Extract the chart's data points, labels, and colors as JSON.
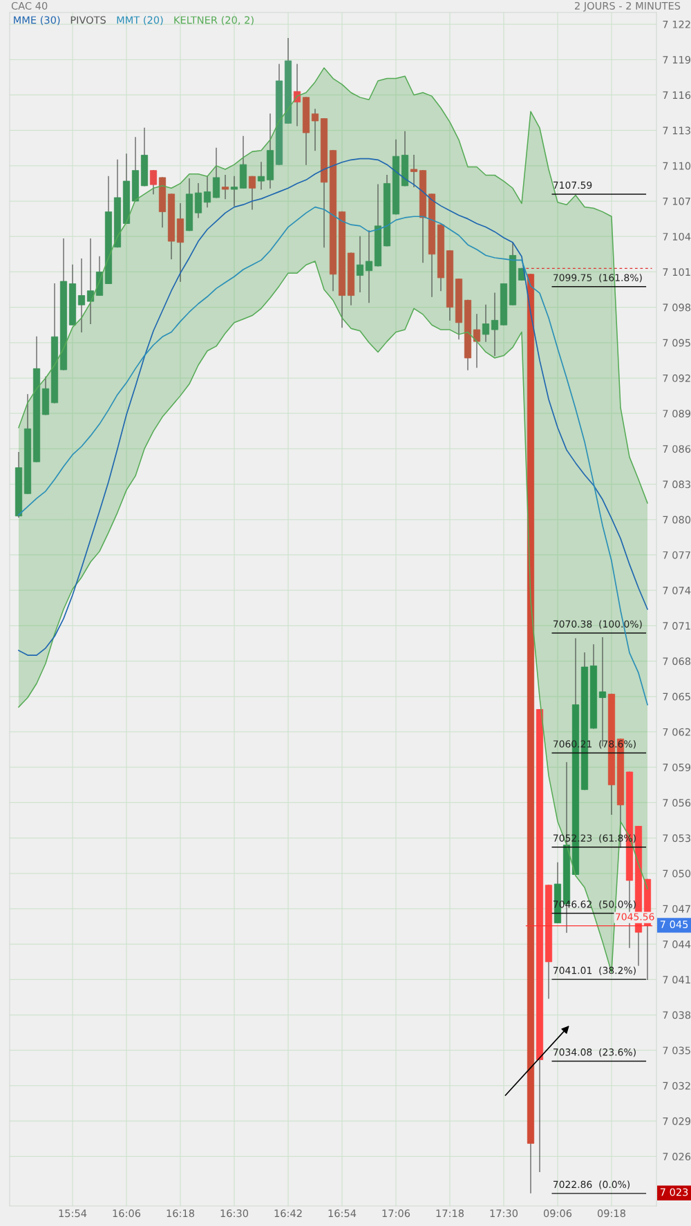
{
  "chart_data": {
    "type": "candlestick",
    "title": "CAC 40",
    "subtitle": "2 JOURS - 2 MINUTES",
    "categories": [
      null,
      null,
      null,
      null,
      null,
      null,
      "15:54",
      null,
      null,
      null,
      null,
      null,
      "16:06",
      null,
      null,
      null,
      null,
      null,
      "16:18",
      null,
      null,
      null,
      null,
      null,
      "16:30",
      null,
      null,
      null,
      null,
      null,
      "16:42",
      null,
      null,
      null,
      null,
      null,
      "16:54",
      null,
      null,
      null,
      null,
      null,
      "17:06",
      null,
      null,
      null,
      null,
      null,
      "17:18",
      null,
      null,
      null,
      null,
      null,
      "17:30",
      null,
      null,
      null,
      null,
      null,
      "09:06",
      null,
      null,
      null,
      null,
      null,
      "09:18",
      null,
      null,
      null,
      null
    ],
    "ohlc": [
      [
        7080.3,
        7085.7,
        7080.2,
        7084.4
      ],
      [
        7082.2,
        7090.6,
        7082.2,
        7087.7
      ],
      [
        7084.9,
        7095.5,
        7084.9,
        7092.8
      ],
      [
        7088.9,
        7092.1,
        7088.9,
        7091.1
      ],
      [
        7089.9,
        7100.0,
        7089.9,
        7095.5
      ],
      [
        7092.7,
        7103.8,
        7092.7,
        7100.2
      ],
      [
        7096.5,
        7101.6,
        7096.5,
        7100.0
      ],
      [
        7098.2,
        7102.1,
        7095.9,
        7099.0
      ],
      [
        7098.5,
        7103.8,
        7096.6,
        7099.4
      ],
      [
        7099.0,
        7102.3,
        7099.0,
        7101.0
      ],
      [
        7100.0,
        7109.1,
        7100.0,
        7106.1
      ],
      [
        7103.1,
        7110.5,
        7103.1,
        7107.3
      ],
      [
        7105.1,
        7111.0,
        7105.1,
        7108.7
      ],
      [
        7107.0,
        7112.4,
        7107.0,
        7109.6
      ],
      [
        7108.3,
        7113.2,
        7108.3,
        7110.9
      ],
      [
        7109.6,
        7109.6,
        7107.6,
        7108.4
      ],
      [
        7109.0,
        7109.0,
        7104.8,
        7106.1
      ],
      [
        7107.6,
        7107.6,
        7102.1,
        7103.6
      ],
      [
        7105.5,
        7106.8,
        7100.2,
        7103.5
      ],
      [
        7104.5,
        7108.9,
        7104.5,
        7107.6
      ],
      [
        7106.0,
        7108.5,
        7105.6,
        7107.7
      ],
      [
        7106.9,
        7109.1,
        7106.5,
        7107.8
      ],
      [
        7107.3,
        7111.5,
        7107.3,
        7109.0
      ],
      [
        7108.2,
        7109.2,
        7107.2,
        7108.0
      ],
      [
        7108.0,
        7109.1,
        7106.6,
        7108.2
      ],
      [
        7108.1,
        7112.5,
        7108.1,
        7110.1
      ],
      [
        7109.1,
        7109.1,
        7106.3,
        7108.1
      ],
      [
        7108.7,
        7110.3,
        7108.0,
        7109.1
      ],
      [
        7108.8,
        7114.4,
        7108.1,
        7111.3
      ],
      [
        7110.1,
        7118.6,
        7110.1,
        7117.2
      ],
      [
        7113.6,
        7120.8,
        7113.6,
        7118.9
      ],
      [
        7116.3,
        7118.6,
        7113.4,
        7115.4
      ],
      [
        7115.8,
        7115.8,
        7110.1,
        7112.8
      ],
      [
        7114.4,
        7114.8,
        7111.3,
        7113.8
      ],
      [
        7114.0,
        7114.0,
        7103.1,
        7108.6
      ],
      [
        7111.3,
        7111.3,
        7099.4,
        7100.8
      ],
      [
        7106.1,
        7106.1,
        7096.3,
        7099.0
      ],
      [
        7102.6,
        7102.6,
        7098.2,
        7099.0
      ],
      [
        7100.7,
        7104.0,
        7099.3,
        7101.6
      ],
      [
        7101.1,
        7104.5,
        7098.4,
        7101.9
      ],
      [
        7101.5,
        7108.4,
        7101.5,
        7104.9
      ],
      [
        7103.2,
        7109.2,
        7103.2,
        7108.5
      ],
      [
        7105.9,
        7112.2,
        7105.9,
        7110.8
      ],
      [
        7108.3,
        7112.9,
        7108.3,
        7110.9
      ],
      [
        7109.7,
        7110.9,
        7108.2,
        7109.5
      ],
      [
        7109.6,
        7109.6,
        7101.8,
        7105.6
      ],
      [
        7107.6,
        7107.6,
        7098.9,
        7102.5
      ],
      [
        7105.0,
        7105.0,
        7099.4,
        7100.5
      ],
      [
        7102.8,
        7102.8,
        7096.9,
        7098.0
      ],
      [
        7100.4,
        7100.4,
        7095.3,
        7096.7
      ],
      [
        7098.6,
        7098.6,
        7092.7,
        7093.7
      ],
      [
        7096.1,
        7097.4,
        7092.9,
        7095.1
      ],
      [
        7095.7,
        7098.2,
        7095.1,
        7096.6
      ],
      [
        7096.1,
        7099.2,
        7093.9,
        7096.9
      ],
      [
        7096.5,
        7100.0,
        7096.5,
        7100.0
      ],
      [
        7098.2,
        7103.5,
        7098.2,
        7102.4
      ],
      [
        7100.3,
        7101.3,
        7100.3,
        7101.3
      ],
      [
        7100.8,
        7100.8,
        7022.9,
        7027.1
      ],
      [
        7063.9,
        7063.9,
        7024.7,
        7034.2
      ],
      [
        7049.0,
        7049.0,
        7039.4,
        7042.5
      ],
      [
        7045.8,
        7050.9,
        7045.8,
        7049.1
      ],
      [
        7047.4,
        7059.4,
        7045.0,
        7052.4
      ],
      [
        7049.9,
        7069.9,
        7049.9,
        7064.3
      ],
      [
        7057.1,
        7068.7,
        7057.1,
        7067.5
      ],
      [
        7062.3,
        7069.4,
        7062.3,
        7067.6
      ],
      [
        7064.9,
        7070.0,
        7060.8,
        7065.4
      ],
      [
        7065.2,
        7065.2,
        7055.0,
        7057.5
      ],
      [
        7061.4,
        7061.4,
        7052.2,
        7055.8
      ],
      [
        7058.6,
        7058.6,
        7043.7,
        7049.4
      ],
      [
        7054.0,
        7054.0,
        7042.2,
        7045.0
      ],
      [
        7049.5,
        7049.5,
        7041.0,
        7045.6
      ]
    ],
    "colors": [
      "#3b9459",
      "#3b9459",
      "#3b9459",
      "#3b9459",
      "#3b9459",
      "#3b9459",
      "#3b9459",
      "#3b9459",
      "#3b9459",
      "#3b9459",
      "#3b9459",
      "#3b9459",
      "#3b9459",
      "#3b9459",
      "#3b9459",
      "#e84a4a",
      "#b95a40",
      "#b95a40",
      "#b95a40",
      "#3b9459",
      "#3b9459",
      "#3b9459",
      "#3b9459",
      "#b95a40",
      "#3b9459",
      "#3b9459",
      "#b95a40",
      "#3b9459",
      "#3b9459",
      "#4a9a70",
      "#4a9a70",
      "#e84a4a",
      "#b95a40",
      "#b95a40",
      "#b95a40",
      "#b95a40",
      "#b95a40",
      "#b95a40",
      "#3b9459",
      "#3b9459",
      "#3b9459",
      "#3b9459",
      "#3b9459",
      "#3b9459",
      "#b95a40",
      "#b95a40",
      "#b95a40",
      "#b95a40",
      "#b95a40",
      "#b95a40",
      "#b95a40",
      "#b95a40",
      "#3b9459",
      "#3b9459",
      "#3b9459",
      "#3b9459",
      "#3b9459",
      "#d04a35",
      "#ff4444",
      "#ff4444",
      "#2e9150",
      "#2e9150",
      "#2e9150",
      "#2e9150",
      "#2e9150",
      "#2e9150",
      "#d9503a",
      "#d9503a",
      "#ff4444",
      "#ff4444",
      "#ff4444"
    ],
    "series": [
      {
        "name": "MME (30)",
        "type": "line",
        "color": "#1f66b0",
        "values": [
          7068.9,
          7068.5,
          7068.5,
          7069.1,
          7070.1,
          7071.6,
          7073.6,
          7075.9,
          7078.3,
          7080.7,
          7083.2,
          7086.0,
          7088.9,
          7091.3,
          7093.8,
          7096.0,
          7097.7,
          7099.4,
          7100.9,
          7102.2,
          7103.6,
          7104.6,
          7105.3,
          7106.0,
          7106.5,
          7106.7,
          7107.0,
          7107.2,
          7107.5,
          7107.8,
          7108.1,
          7108.5,
          7108.8,
          7109.3,
          7109.7,
          7110.0,
          7110.3,
          7110.5,
          7110.6,
          7110.6,
          7110.5,
          7110.1,
          7109.5,
          7108.9,
          7108.4,
          7107.8,
          7107.1,
          7106.6,
          7106.2,
          7105.8,
          7105.5,
          7105.1,
          7104.8,
          7104.4,
          7103.9,
          7103.5,
          7102.3,
          7097.5,
          7093.5,
          7090.2,
          7087.8,
          7085.9,
          7084.8,
          7083.8,
          7082.9,
          7081.7,
          7080.1,
          7078.4,
          7076.2,
          7074.2,
          7072.4
        ]
      },
      {
        "name": "MMT (20)",
        "type": "line",
        "color": "#2a8fb8",
        "values": [
          7080.4,
          7081.1,
          7081.8,
          7082.4,
          7083.4,
          7084.5,
          7085.5,
          7086.2,
          7087.1,
          7088.1,
          7089.3,
          7090.6,
          7091.6,
          7092.8,
          7093.9,
          7094.8,
          7095.5,
          7095.9,
          7096.8,
          7097.6,
          7098.3,
          7098.9,
          7099.6,
          7100.1,
          7100.6,
          7101.2,
          7101.6,
          7102.0,
          7102.8,
          7103.8,
          7104.8,
          7105.4,
          7106.0,
          7106.5,
          7106.3,
          7105.8,
          7105.3,
          7105.0,
          7104.9,
          7104.4,
          7104.6,
          7104.9,
          7105.4,
          7105.6,
          7105.7,
          7105.7,
          7105.4,
          7105.1,
          7104.6,
          7104.1,
          7103.3,
          7102.9,
          7102.4,
          7102.2,
          7102.1,
          7102.0,
          7102.0,
          7099.8,
          7099.2,
          7097.1,
          7094.5,
          7092.0,
          7089.4,
          7086.6,
          7083.1,
          7079.5,
          7076.5,
          7072.3,
          7068.7,
          7067.0,
          7064.3
        ]
      },
      {
        "name": "KELTNER (20, 2)",
        "type": "line",
        "color": "#55aa55",
        "upper": [
          7087.8,
          7089.9,
          7091.1,
          7092.0,
          7093.1,
          7094.5,
          7096.3,
          7097.1,
          7098.4,
          7100.2,
          7102.2,
          7104.0,
          7105.2,
          7107.1,
          7107.6,
          7108.1,
          7108.3,
          7108.1,
          7108.5,
          7109.3,
          7109.3,
          7109.1,
          7110.0,
          7109.7,
          7110.1,
          7110.7,
          7111.2,
          7111.3,
          7112.2,
          7113.8,
          7114.8,
          7115.9,
          7116.2,
          7117.1,
          7118.3,
          7117.4,
          7116.9,
          7116.2,
          7115.8,
          7115.6,
          7117.2,
          7117.4,
          7117.4,
          7117.6,
          7116.0,
          7116.2,
          7115.9,
          7114.9,
          7113.7,
          7112.2,
          7109.9,
          7109.9,
          7109.2,
          7109.2,
          7108.7,
          7108.1,
          7106.8,
          7114.6,
          7113.2,
          7109.7,
          7106.9,
          7106.7,
          7107.5,
          7106.5,
          7106.4,
          7106.1,
          7105.7,
          7089.5,
          7085.3,
          7083.4,
          7081.4
        ],
        "lower": [
          7064.1,
          7064.9,
          7066.1,
          7067.8,
          7070.3,
          7072.4,
          7074.1,
          7075.1,
          7076.4,
          7077.3,
          7078.9,
          7080.6,
          7082.5,
          7083.7,
          7086.0,
          7087.5,
          7088.7,
          7089.6,
          7090.5,
          7091.5,
          7093.1,
          7094.3,
          7094.7,
          7095.8,
          7096.7,
          7097.0,
          7097.3,
          7097.9,
          7098.8,
          7099.8,
          7100.9,
          7100.9,
          7101.6,
          7101.9,
          7099.5,
          7098.6,
          7097.1,
          7096.2,
          7096.0,
          7095.0,
          7094.2,
          7095.1,
          7095.9,
          7096.1,
          7097.9,
          7097.4,
          7096.5,
          7096.1,
          7096.1,
          7095.7,
          7095.9,
          7095.1,
          7094.2,
          7093.7,
          7093.9,
          7094.6,
          7095.9,
          7073.1,
          7064.9,
          7058.3,
          7054.4,
          7052.4,
          7049.8,
          7048.8,
          7046.6,
          7044.2,
          7041.6,
          7054.4,
          7053.1,
          7050.8,
          7048.7
        ],
        "values": [
          7087.8,
          7089.9,
          7091.1,
          7092.0,
          7093.1,
          7094.5,
          7096.3,
          7097.1,
          7098.4,
          7100.2,
          7102.2,
          7104.0,
          7105.2,
          7107.1,
          7107.6,
          7108.1,
          7108.3,
          7108.1,
          7108.5,
          7109.3,
          7109.3,
          7109.1,
          7110.0,
          7109.7,
          7110.1,
          7110.7,
          7111.2,
          7111.3,
          7112.2,
          7113.8,
          7114.8,
          7115.9,
          7116.2,
          7117.1,
          7118.3,
          7117.4,
          7116.9,
          7116.2,
          7115.8,
          7115.6,
          7117.2,
          7117.4,
          7117.4,
          7117.6,
          7116.0,
          7116.2,
          7115.9,
          7114.9,
          7113.7,
          7112.2,
          7109.9,
          7109.9,
          7109.2,
          7109.2,
          7108.7,
          7108.1,
          7106.8,
          7114.6,
          7113.2,
          7109.7,
          7106.9,
          7106.7,
          7107.5,
          7106.5,
          7106.4,
          7106.1,
          7105.7,
          7089.5,
          7085.3,
          7083.4,
          7081.4
        ]
      },
      {
        "type": "line",
        "color": "#55aa55",
        "values": [
          7064.1,
          7064.9,
          7066.1,
          7067.8,
          7070.3,
          7072.4,
          7074.1,
          7075.1,
          7076.4,
          7077.3,
          7078.9,
          7080.6,
          7082.5,
          7083.7,
          7086.0,
          7087.5,
          7088.7,
          7089.6,
          7090.5,
          7091.5,
          7093.1,
          7094.3,
          7094.7,
          7095.8,
          7096.7,
          7097.0,
          7097.3,
          7097.9,
          7098.8,
          7099.8,
          7100.9,
          7100.9,
          7101.6,
          7101.9,
          7099.5,
          7098.6,
          7097.1,
          7096.2,
          7096.0,
          7095.0,
          7094.2,
          7095.1,
          7095.9,
          7096.1,
          7097.9,
          7097.4,
          7096.5,
          7096.1,
          7096.1,
          7095.7,
          7095.9,
          7095.1,
          7094.2,
          7093.7,
          7093.9,
          7094.6,
          7095.9,
          7073.1,
          7064.9,
          7058.3,
          7054.4,
          7052.4,
          7049.8,
          7048.8,
          7046.6,
          7044.2,
          7041.6,
          7054.4,
          7053.1,
          7050.8,
          7048.7
        ]
      }
    ],
    "ylim": [
      7021.8,
      7123.0
    ],
    "yticks": [
      {
        "value": 7122,
        "label": "7 122"
      },
      {
        "value": 7119,
        "label": "7 119"
      },
      {
        "value": 7116,
        "label": "7 116"
      },
      {
        "value": 7113,
        "label": "7 113"
      },
      {
        "value": 7110,
        "label": "7 110"
      },
      {
        "value": 7107,
        "label": "7 107"
      },
      {
        "value": 7104,
        "label": "7 104"
      },
      {
        "value": 7101,
        "label": "7 101"
      },
      {
        "value": 7098,
        "label": "7 098"
      },
      {
        "value": 7095,
        "label": "7 095"
      },
      {
        "value": 7092,
        "label": "7 092"
      },
      {
        "value": 7089,
        "label": "7 089"
      },
      {
        "value": 7086,
        "label": "7 086"
      },
      {
        "value": 7083,
        "label": "7 083"
      },
      {
        "value": 7080,
        "label": "7 080"
      },
      {
        "value": 7077,
        "label": "7 077"
      },
      {
        "value": 7074,
        "label": "7 074"
      },
      {
        "value": 7071,
        "label": "7 071"
      },
      {
        "value": 7068,
        "label": "7 068"
      },
      {
        "value": 7065,
        "label": "7 065"
      },
      {
        "value": 7062,
        "label": "7 062"
      },
      {
        "value": 7059,
        "label": "7 059"
      },
      {
        "value": 7056,
        "label": "7 056"
      },
      {
        "value": 7053,
        "label": "7 053"
      },
      {
        "value": 7050,
        "label": "7 050"
      },
      {
        "value": 7047,
        "label": "7 047"
      },
      {
        "value": 7044,
        "label": "7 044"
      },
      {
        "value": 7041,
        "label": "7 041"
      },
      {
        "value": 7038,
        "label": "7 038"
      },
      {
        "value": 7035,
        "label": "7 035"
      },
      {
        "value": 7032,
        "label": "7 032"
      },
      {
        "value": 7029,
        "label": "7 029"
      },
      {
        "value": 7026,
        "label": "7 026"
      }
    ],
    "ref_lines": [
      {
        "axis": "y",
        "value": 7107.59,
        "label": "7107.59"
      },
      {
        "axis": "y",
        "value": 7101.3,
        "color": "#e03030",
        "line_style": "dashed"
      },
      {
        "axis": "y",
        "value": 7099.75,
        "label": "7099.75  (161.8%)"
      },
      {
        "axis": "y",
        "value": 7070.38,
        "label": "7070.38  (100.0%)"
      },
      {
        "axis": "y",
        "value": 7060.21,
        "label": "7060.21  (78.6%)"
      },
      {
        "axis": "y",
        "value": 7052.23,
        "label": "7052.23  (61.8%)"
      },
      {
        "axis": "y",
        "value": 7046.62,
        "label": "7046.62  (50.0%)"
      },
      {
        "axis": "y",
        "value": 7041.01,
        "label": "7041.01  (38.2%)"
      },
      {
        "axis": "y",
        "value": 7034.08,
        "label": "7034.08  (23.6%)"
      },
      {
        "axis": "y",
        "value": 7022.86,
        "label": "7022.86  (0.0%)"
      },
      {
        "axis": "y",
        "value": 7045.56,
        "label": "7045.56",
        "color": "#ff3030"
      }
    ],
    "annotations": [
      "PIVOTS",
      "7 045",
      "7 023"
    ],
    "grid": true,
    "legend": "top left"
  }
}
